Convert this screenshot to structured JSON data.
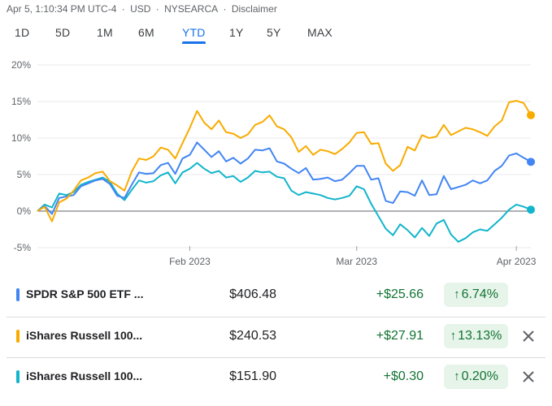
{
  "header": {
    "timestamp": "Apr 5, 1:10:34 PM UTC-4",
    "currency": "USD",
    "exchange": "NYSEARCA",
    "disclaimer": "Disclaimer",
    "separator": "·"
  },
  "ranges": [
    "1D",
    "5D",
    "1M",
    "6M",
    "YTD",
    "1Y",
    "5Y",
    "MAX"
  ],
  "active_range": "YTD",
  "colors": {
    "accent": "#1a73e8",
    "gain": "#137333",
    "gain_bg": "#e6f4ea"
  },
  "chart_data": {
    "type": "line",
    "ylim": [
      -5,
      20
    ],
    "y_ticks": [
      "20%",
      "15%",
      "10%",
      "5%",
      "0%",
      "-5%"
    ],
    "x_ticks": [
      "Feb 2023",
      "Mar 2023",
      "Apr 2023"
    ],
    "grid": true,
    "series": [
      {
        "name": "SPDR S&P 500 ETF ...",
        "color": "#4285f4",
        "values": [
          0,
          0.7,
          -0.4,
          1.8,
          2.0,
          2.2,
          3.4,
          3.8,
          4.2,
          4.4,
          3.7,
          2.1,
          1.8,
          3.6,
          5.3,
          5.1,
          5.2,
          6.3,
          6.6,
          5.1,
          7.2,
          7.7,
          9.4,
          8.4,
          7.4,
          8.2,
          6.8,
          7.3,
          6.5,
          7.2,
          8.4,
          8.3,
          8.6,
          6.8,
          6.5,
          5.8,
          5.2,
          5.9,
          4.3,
          4.4,
          4.6,
          4.1,
          4.3,
          5.2,
          6.2,
          6.2,
          4.3,
          4.5,
          1.4,
          1.1,
          2.7,
          2.6,
          2.1,
          4.2,
          2.2,
          2.3,
          4.8,
          3.0,
          3.3,
          3.6,
          4.2,
          3.8,
          4.2,
          5.5,
          6.2,
          7.6,
          7.9,
          7.3,
          6.74
        ]
      },
      {
        "name": "iShares Russell 100...",
        "color": "#f9ab00",
        "values": [
          0,
          0.6,
          -1.4,
          1.2,
          1.7,
          2.8,
          4.2,
          4.6,
          5.2,
          5.4,
          4.1,
          3.5,
          2.8,
          5.4,
          7.2,
          7.0,
          7.5,
          8.7,
          8.4,
          7.2,
          9.3,
          11.4,
          13.7,
          12.1,
          11.2,
          12.4,
          10.8,
          10.6,
          10.0,
          10.5,
          11.8,
          12.2,
          13.1,
          11.6,
          11.2,
          10.1,
          8.1,
          8.9,
          7.7,
          8.4,
          8.2,
          7.8,
          8.5,
          9.4,
          10.7,
          10.8,
          9.2,
          9.3,
          6.5,
          5.5,
          6.3,
          8.8,
          8.3,
          10.4,
          10.0,
          10.2,
          11.8,
          10.4,
          10.9,
          11.4,
          11.2,
          10.8,
          10.3,
          11.6,
          12.4,
          14.9,
          15.1,
          14.8,
          13.13
        ]
      },
      {
        "name": "iShares Russell 100...",
        "color": "#12b5cb",
        "values": [
          0,
          0.9,
          0.5,
          2.4,
          2.2,
          2.6,
          3.6,
          4.0,
          4.3,
          4.6,
          4.0,
          2.4,
          1.5,
          2.9,
          4.2,
          3.9,
          4.1,
          4.9,
          5.3,
          3.8,
          5.3,
          5.8,
          6.6,
          5.8,
          5.2,
          5.5,
          4.6,
          4.8,
          4.0,
          4.6,
          5.5,
          5.3,
          5.4,
          4.7,
          4.5,
          2.8,
          2.2,
          2.6,
          2.4,
          2.2,
          1.8,
          1.6,
          1.8,
          2.1,
          3.4,
          3.0,
          1.0,
          -0.7,
          -2.4,
          -3.3,
          -1.8,
          -2.6,
          -3.6,
          -2.3,
          -3.4,
          -1.7,
          -1.2,
          -3.2,
          -4.2,
          -3.7,
          -2.9,
          -2.5,
          -2.7,
          -1.8,
          -0.9,
          0.2,
          0.9,
          0.6,
          0.2
        ]
      }
    ]
  },
  "holdings": [
    {
      "name": "SPDR S&P 500 ETF ...",
      "price": "$406.48",
      "change": "+$25.66",
      "arrow": "↑",
      "percent": "6.74%",
      "color": "#4285f4",
      "removable": false
    },
    {
      "name": "iShares Russell 100...",
      "price": "$240.53",
      "change": "+$27.91",
      "arrow": "↑",
      "percent": "13.13%",
      "color": "#f9ab00",
      "removable": true
    },
    {
      "name": "iShares Russell 100...",
      "price": "$151.90",
      "change": "+$0.30",
      "arrow": "↑",
      "percent": "0.20%",
      "color": "#12b5cb",
      "removable": true
    }
  ]
}
